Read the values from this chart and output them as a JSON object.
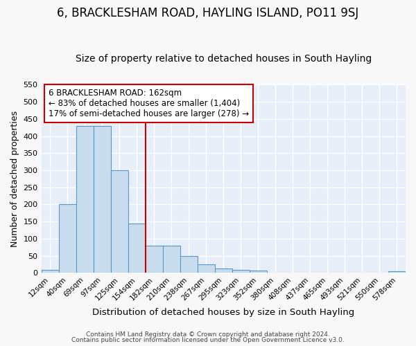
{
  "title": "6, BRACKLESHAM ROAD, HAYLING ISLAND, PO11 9SJ",
  "subtitle": "Size of property relative to detached houses in South Hayling",
  "xlabel": "Distribution of detached houses by size in South Hayling",
  "ylabel": "Number of detached properties",
  "categories": [
    "12sqm",
    "40sqm",
    "69sqm",
    "97sqm",
    "125sqm",
    "154sqm",
    "182sqm",
    "210sqm",
    "238sqm",
    "267sqm",
    "295sqm",
    "323sqm",
    "352sqm",
    "380sqm",
    "408sqm",
    "437sqm",
    "465sqm",
    "493sqm",
    "521sqm",
    "550sqm",
    "578sqm"
  ],
  "values": [
    10,
    200,
    430,
    430,
    300,
    145,
    80,
    80,
    50,
    25,
    13,
    10,
    6,
    0,
    0,
    0,
    0,
    0,
    0,
    0,
    5
  ],
  "bar_color": "#c8dcee",
  "bar_edge_color": "#5599cc",
  "red_line_x": 5.5,
  "annotation_line1": "6 BRACKLESHAM ROAD: 162sqm",
  "annotation_line2": "← 83% of detached houses are smaller (1,404)",
  "annotation_line3": "17% of semi-detached houses are larger (278) →",
  "annotation_box_color": "#ffffff",
  "annotation_box_edge": "#cc0000",
  "annotation_fontsize": 8.5,
  "title_fontsize": 12,
  "subtitle_fontsize": 10,
  "ylim": [
    0,
    550
  ],
  "yticks": [
    0,
    50,
    100,
    150,
    200,
    250,
    300,
    350,
    400,
    450,
    500,
    550
  ],
  "fig_bg_color": "#f8f8f8",
  "plot_bg_color": "#e8eef8",
  "grid_color": "#ffffff",
  "footer_line1": "Contains HM Land Registry data © Crown copyright and database right 2024.",
  "footer_line2": "Contains public sector information licensed under the Open Government Licence v3.0."
}
